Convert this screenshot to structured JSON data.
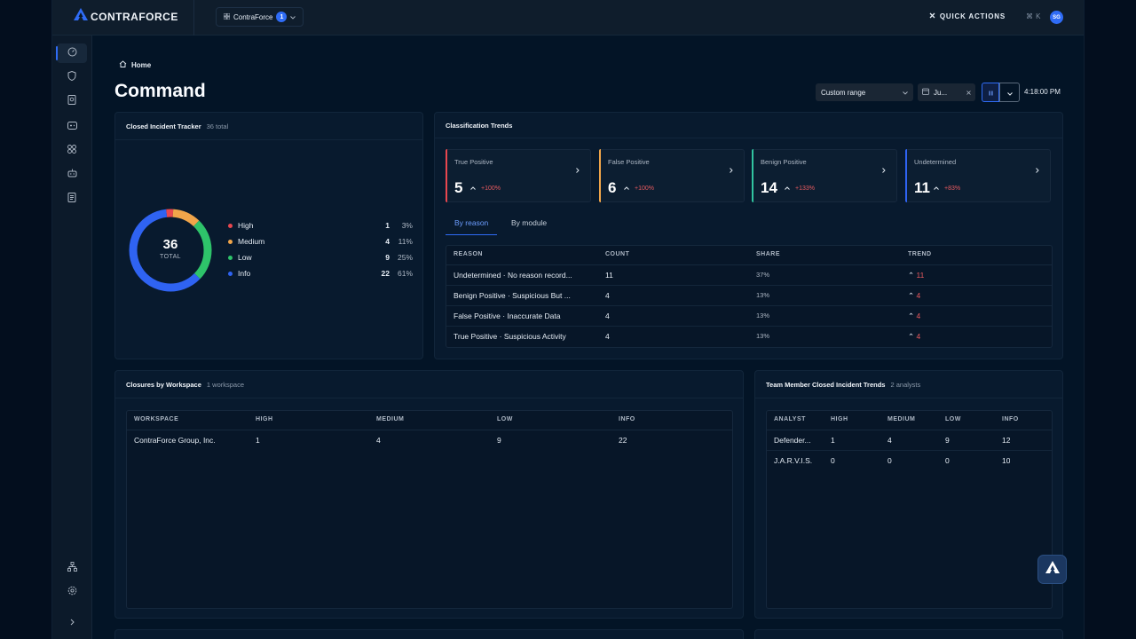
{
  "app": {
    "brand": "CONTRAFORCE",
    "workspace_switch": {
      "label": "ContraForce",
      "badge": "1"
    },
    "quick_actions": {
      "label": "QUICK ACTIONS",
      "shortcut": "⌘ K"
    },
    "avatar_initials": "SG",
    "accent_color": "#2f6cf6"
  },
  "sidebar": {
    "items": [
      {
        "icon": "gauge-icon",
        "active": true
      },
      {
        "icon": "shield-icon"
      },
      {
        "icon": "search-document-icon"
      },
      {
        "icon": "gamepad-icon"
      },
      {
        "icon": "apps-grid-icon"
      },
      {
        "icon": "robot-icon"
      },
      {
        "icon": "report-list-icon"
      }
    ],
    "bottom_items": [
      {
        "icon": "network-tree-icon"
      },
      {
        "icon": "settings-gear-icon"
      },
      {
        "icon": "chevron-right-icon"
      }
    ]
  },
  "header": {
    "breadcrumb": "Home",
    "title": "Command",
    "range_select": "Custom range",
    "date_chip": "Ju...",
    "clock": "4:18:00 PM"
  },
  "closed_incident_tracker": {
    "title": "Closed Incident Tracker",
    "subtitle": "36 total",
    "total": "36",
    "total_label": "TOTAL",
    "items": [
      {
        "label": "High",
        "count": "1",
        "pct": "3%",
        "value": 1,
        "color": "#e8474f"
      },
      {
        "label": "Medium",
        "count": "4",
        "pct": "11%",
        "value": 4,
        "color": "#f0a54a"
      },
      {
        "label": "Low",
        "count": "9",
        "pct": "25%",
        "value": 9,
        "color": "#2ec36a"
      },
      {
        "label": "Info",
        "count": "22",
        "pct": "61%",
        "value": 22,
        "color": "#2f63f2"
      }
    ]
  },
  "classification_trends": {
    "title": "Classification Trends",
    "kpis": [
      {
        "label": "True Positive",
        "value": "5",
        "trend": "+100%",
        "color": "#e8474f"
      },
      {
        "label": "False Positive",
        "value": "6",
        "trend": "+100%",
        "color": "#f0a54a"
      },
      {
        "label": "Benign Positive",
        "value": "14",
        "trend": "+133%",
        "color": "#31c4a0"
      },
      {
        "label": "Undetermined",
        "value": "11",
        "trend": "+83%",
        "color": "#2f63f2"
      }
    ],
    "tabs": [
      "By reason",
      "By module"
    ],
    "table": {
      "columns": [
        "REASON",
        "COUNT",
        "SHARE",
        "TREND"
      ],
      "rows": [
        {
          "reason": "Undetermined · No reason record...",
          "count": "11",
          "share": "37%",
          "trend": "11"
        },
        {
          "reason": "Benign Positive · Suspicious But ...",
          "count": "4",
          "share": "13%",
          "trend": "4"
        },
        {
          "reason": "False Positive · Inaccurate Data",
          "count": "4",
          "share": "13%",
          "trend": "4"
        },
        {
          "reason": "True Positive · Suspicious Activity",
          "count": "4",
          "share": "13%",
          "trend": "4"
        }
      ]
    }
  },
  "closures_by_workspace": {
    "title": "Closures by Workspace",
    "subtitle": "1 workspace",
    "columns": [
      "WORKSPACE",
      "HIGH",
      "MEDIUM",
      "LOW",
      "INFO"
    ],
    "rows": [
      {
        "workspace": "ContraForce Group, Inc.",
        "high": "1",
        "medium": "4",
        "low": "9",
        "info": "22"
      }
    ]
  },
  "team_member_trends": {
    "title": "Team Member Closed Incident Trends",
    "subtitle": "2 analysts",
    "columns": [
      "ANALYST",
      "HIGH",
      "MEDIUM",
      "LOW",
      "INFO"
    ],
    "rows": [
      {
        "analyst": "Defender...",
        "high": "1",
        "medium": "4",
        "low": "9",
        "info": "12"
      },
      {
        "analyst": "J.A.R.V.I.S.",
        "high": "0",
        "medium": "0",
        "low": "0",
        "info": "10"
      }
    ]
  }
}
